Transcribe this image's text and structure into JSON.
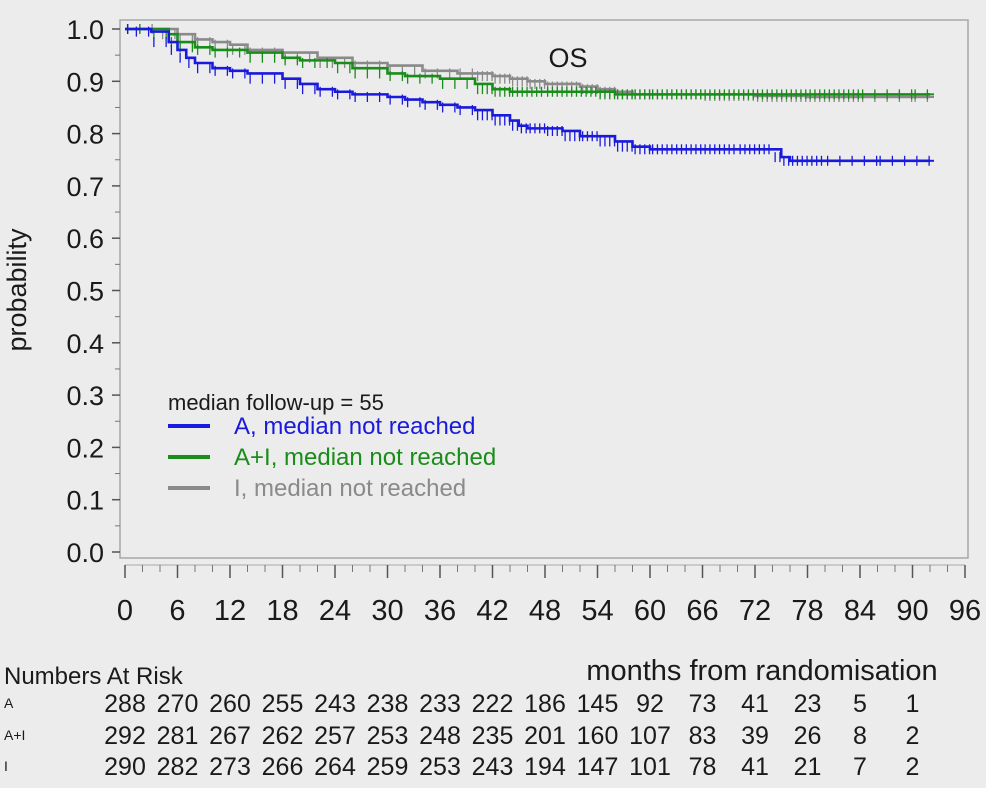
{
  "chart_data": {
    "type": "line",
    "subtype": "kaplan-meier",
    "title": "OS",
    "xlabel": "months from randomisation",
    "ylabel": "probability",
    "xlim": [
      0,
      96
    ],
    "ylim": [
      0,
      1.0
    ],
    "xticks": [
      "0",
      "6",
      "12",
      "18",
      "24",
      "30",
      "36",
      "42",
      "48",
      "54",
      "60",
      "66",
      "72",
      "78",
      "84",
      "90",
      "96"
    ],
    "yticks": [
      "0.0",
      "0.1",
      "0.2",
      "0.3",
      "0.4",
      "0.5",
      "0.6",
      "0.7",
      "0.8",
      "0.9",
      "1.0"
    ],
    "grid": false,
    "legend": {
      "header": "median follow-up =  55",
      "placement": "lower-left"
    },
    "series": [
      {
        "name": "A, median not reached",
        "color": "#1a1adc",
        "points": [
          [
            0,
            1.0
          ],
          [
            1,
            1.0
          ],
          [
            3,
            0.995
          ],
          [
            5,
            0.975
          ],
          [
            6,
            0.96
          ],
          [
            7,
            0.945
          ],
          [
            8,
            0.935
          ],
          [
            10,
            0.925
          ],
          [
            12,
            0.92
          ],
          [
            14,
            0.915
          ],
          [
            18,
            0.905
          ],
          [
            20,
            0.895
          ],
          [
            22,
            0.885
          ],
          [
            24,
            0.88
          ],
          [
            26,
            0.875
          ],
          [
            30,
            0.87
          ],
          [
            32,
            0.865
          ],
          [
            34,
            0.86
          ],
          [
            36,
            0.855
          ],
          [
            38,
            0.85
          ],
          [
            40,
            0.845
          ],
          [
            42,
            0.835
          ],
          [
            44,
            0.825
          ],
          [
            45,
            0.815
          ],
          [
            46,
            0.81
          ],
          [
            48,
            0.81
          ],
          [
            50,
            0.805
          ],
          [
            52,
            0.795
          ],
          [
            54,
            0.795
          ],
          [
            56,
            0.785
          ],
          [
            58,
            0.775
          ],
          [
            60,
            0.77
          ],
          [
            66,
            0.77
          ],
          [
            70,
            0.77
          ],
          [
            74,
            0.77
          ],
          [
            75,
            0.755
          ],
          [
            76,
            0.748
          ],
          [
            80,
            0.748
          ],
          [
            86,
            0.748
          ],
          [
            92,
            0.748
          ]
        ]
      },
      {
        "name": "A+I, median not reached",
        "color": "#1a8c1a",
        "points": [
          [
            0,
            1.0
          ],
          [
            3,
            1.0
          ],
          [
            5,
            0.99
          ],
          [
            6,
            0.975
          ],
          [
            8,
            0.965
          ],
          [
            10,
            0.96
          ],
          [
            14,
            0.955
          ],
          [
            18,
            0.945
          ],
          [
            20,
            0.94
          ],
          [
            24,
            0.935
          ],
          [
            26,
            0.925
          ],
          [
            30,
            0.915
          ],
          [
            32,
            0.91
          ],
          [
            36,
            0.905
          ],
          [
            40,
            0.895
          ],
          [
            42,
            0.885
          ],
          [
            44,
            0.88
          ],
          [
            48,
            0.88
          ],
          [
            54,
            0.88
          ],
          [
            56,
            0.875
          ],
          [
            58,
            0.875
          ],
          [
            60,
            0.875
          ],
          [
            66,
            0.875
          ],
          [
            72,
            0.875
          ],
          [
            78,
            0.875
          ],
          [
            84,
            0.875
          ],
          [
            90,
            0.875
          ],
          [
            92,
            0.875
          ]
        ]
      },
      {
        "name": "I, median not reached",
        "color": "#8a8a8a",
        "points": [
          [
            0,
            1.0
          ],
          [
            4,
            1.0
          ],
          [
            6,
            0.99
          ],
          [
            8,
            0.98
          ],
          [
            10,
            0.975
          ],
          [
            12,
            0.97
          ],
          [
            14,
            0.96
          ],
          [
            18,
            0.955
          ],
          [
            22,
            0.945
          ],
          [
            26,
            0.935
          ],
          [
            30,
            0.93
          ],
          [
            34,
            0.92
          ],
          [
            38,
            0.915
          ],
          [
            40,
            0.915
          ],
          [
            42,
            0.91
          ],
          [
            44,
            0.905
          ],
          [
            46,
            0.9
          ],
          [
            48,
            0.895
          ],
          [
            52,
            0.89
          ],
          [
            54,
            0.885
          ],
          [
            56,
            0.88
          ],
          [
            58,
            0.875
          ],
          [
            60,
            0.875
          ],
          [
            66,
            0.875
          ],
          [
            72,
            0.872
          ],
          [
            78,
            0.87
          ],
          [
            84,
            0.87
          ],
          [
            90,
            0.87
          ],
          [
            92,
            0.87
          ]
        ]
      }
    ],
    "at_risk": {
      "label": "Numbers At Risk",
      "rows": [
        {
          "name": "A",
          "values": [
            "288",
            "270",
            "260",
            "255",
            "243",
            "238",
            "233",
            "222",
            "186",
            "145",
            "92",
            "73",
            "41",
            "23",
            "5",
            "1"
          ]
        },
        {
          "name": "A+I",
          "values": [
            "292",
            "281",
            "267",
            "262",
            "257",
            "253",
            "248",
            "235",
            "201",
            "160",
            "107",
            "83",
            "39",
            "26",
            "8",
            "2"
          ]
        },
        {
          "name": "I",
          "values": [
            "290",
            "282",
            "273",
            "266",
            "264",
            "259",
            "253",
            "243",
            "194",
            "147",
            "101",
            "78",
            "41",
            "21",
            "7",
            "2"
          ]
        }
      ]
    }
  }
}
